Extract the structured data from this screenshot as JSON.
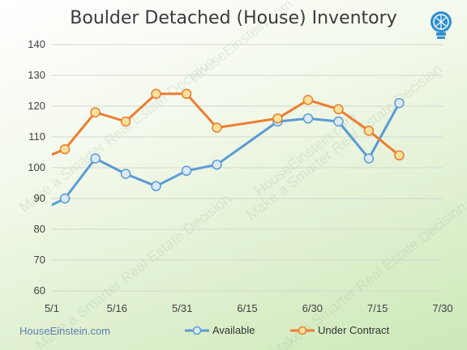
{
  "chart_data": {
    "type": "line",
    "title": "Boulder Detached (House) Inventory",
    "xlabel": "",
    "ylabel": "",
    "x_ticks": [
      "5/1",
      "5/16",
      "5/31",
      "6/15",
      "6/30",
      "7/15",
      "7/30"
    ],
    "y_ticks": [
      60,
      70,
      80,
      90,
      100,
      110,
      120,
      130,
      140
    ],
    "ylim": [
      60,
      140
    ],
    "grid": true,
    "legend_position": "bottom",
    "series": [
      {
        "name": "Available",
        "color": "#5b9bd5",
        "marker_fill": "#dde9f6",
        "points": [
          {
            "x": "4/24",
            "y": 83
          },
          {
            "x": "5/4",
            "y": 90
          },
          {
            "x": "5/11",
            "y": 103
          },
          {
            "x": "5/18",
            "y": 98
          },
          {
            "x": "5/25",
            "y": 94
          },
          {
            "x": "6/1",
            "y": 99
          },
          {
            "x": "6/8",
            "y": 101
          },
          {
            "x": "6/22",
            "y": 115
          },
          {
            "x": "6/29",
            "y": 116
          },
          {
            "x": "7/6",
            "y": 115
          },
          {
            "x": "7/13",
            "y": 103
          },
          {
            "x": "7/20",
            "y": 121
          }
        ]
      },
      {
        "name": "Under Contract",
        "color": "#ed7d31",
        "marker_fill": "#f6e29a",
        "points": [
          {
            "x": "4/27",
            "y": 102
          },
          {
            "x": "5/4",
            "y": 106
          },
          {
            "x": "5/11",
            "y": 118
          },
          {
            "x": "5/18",
            "y": 115
          },
          {
            "x": "5/25",
            "y": 124
          },
          {
            "x": "6/1",
            "y": 124
          },
          {
            "x": "6/8",
            "y": 113
          },
          {
            "x": "6/22",
            "y": 116
          },
          {
            "x": "6/29",
            "y": 122
          },
          {
            "x": "7/6",
            "y": 119
          },
          {
            "x": "7/13",
            "y": 112
          },
          {
            "x": "7/20",
            "y": 104
          }
        ]
      }
    ]
  },
  "footer": {
    "brand": "HouseEinstein.com"
  },
  "watermark": [
    "Make a Smarter Real Estate Decision",
    "HouseEinstein.com"
  ],
  "logo_icon": "lightbulb-icon"
}
